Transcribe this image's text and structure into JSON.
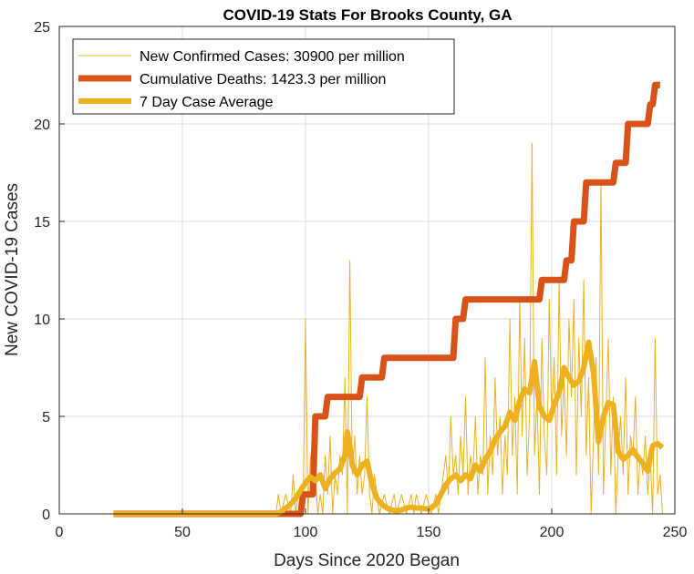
{
  "chart_data": {
    "type": "line",
    "title": "COVID-19 Stats For Brooks County, GA",
    "xlabel": "Days Since 2020 Began",
    "ylabel": "New COVID-19 Cases",
    "xlim": [
      0,
      250
    ],
    "ylim": [
      0,
      25
    ],
    "xticks": [
      "0",
      "50",
      "100",
      "150",
      "200",
      "250"
    ],
    "yticks": [
      "0",
      "5",
      "10",
      "15",
      "20",
      "25"
    ],
    "grid": true,
    "legend_position": "top-left",
    "series": [
      {
        "name": "New Confirmed Cases: 30900 per million",
        "color": "#EDB120",
        "style": "thin",
        "points": [
          [
            22,
            0
          ],
          [
            88,
            0
          ],
          [
            89,
            1
          ],
          [
            90,
            0
          ],
          [
            92,
            1
          ],
          [
            94,
            0
          ],
          [
            95,
            2
          ],
          [
            96,
            0
          ],
          [
            97,
            1
          ],
          [
            98,
            1
          ],
          [
            99,
            0
          ],
          [
            100,
            10
          ],
          [
            101,
            0
          ],
          [
            102,
            3
          ],
          [
            103,
            1
          ],
          [
            104,
            2
          ],
          [
            105,
            0
          ],
          [
            106,
            1
          ],
          [
            107,
            0
          ],
          [
            108,
            3
          ],
          [
            109,
            1
          ],
          [
            110,
            4
          ],
          [
            111,
            0
          ],
          [
            112,
            2
          ],
          [
            113,
            1
          ],
          [
            114,
            3
          ],
          [
            115,
            2
          ],
          [
            116,
            7
          ],
          [
            117,
            0
          ],
          [
            118,
            13
          ],
          [
            119,
            2
          ],
          [
            120,
            4
          ],
          [
            121,
            1
          ],
          [
            122,
            3
          ],
          [
            123,
            1
          ],
          [
            124,
            2
          ],
          [
            125,
            6
          ],
          [
            126,
            1
          ],
          [
            127,
            0
          ],
          [
            128,
            2
          ],
          [
            129,
            1
          ],
          [
            130,
            0
          ],
          [
            132,
            1
          ],
          [
            134,
            0
          ],
          [
            136,
            1
          ],
          [
            137,
            0
          ],
          [
            139,
            1
          ],
          [
            141,
            0
          ],
          [
            143,
            1
          ],
          [
            144,
            0
          ],
          [
            145,
            1
          ],
          [
            147,
            0
          ],
          [
            149,
            1
          ],
          [
            151,
            0
          ],
          [
            153,
            1
          ],
          [
            154,
            0
          ],
          [
            156,
            2
          ],
          [
            157,
            3
          ],
          [
            158,
            1
          ],
          [
            159,
            5
          ],
          [
            160,
            2
          ],
          [
            161,
            3
          ],
          [
            162,
            1
          ],
          [
            163,
            4
          ],
          [
            164,
            2
          ],
          [
            165,
            6
          ],
          [
            166,
            1
          ],
          [
            167,
            3
          ],
          [
            168,
            2
          ],
          [
            169,
            5
          ],
          [
            170,
            1
          ],
          [
            171,
            3
          ],
          [
            172,
            2
          ],
          [
            173,
            8
          ],
          [
            174,
            1
          ],
          [
            175,
            4
          ],
          [
            176,
            2
          ],
          [
            177,
            7
          ],
          [
            178,
            3
          ],
          [
            179,
            5
          ],
          [
            180,
            1
          ],
          [
            181,
            4
          ],
          [
            182,
            2
          ],
          [
            183,
            10
          ],
          [
            184,
            3
          ],
          [
            185,
            6
          ],
          [
            186,
            1
          ],
          [
            187,
            11
          ],
          [
            188,
            4
          ],
          [
            189,
            9
          ],
          [
            190,
            2
          ],
          [
            191,
            5
          ],
          [
            192,
            19
          ],
          [
            193,
            3
          ],
          [
            194,
            6
          ],
          [
            195,
            1
          ],
          [
            196,
            9
          ],
          [
            197,
            4
          ],
          [
            198,
            2
          ],
          [
            199,
            11
          ],
          [
            200,
            5
          ],
          [
            201,
            8
          ],
          [
            202,
            2
          ],
          [
            203,
            12
          ],
          [
            204,
            4
          ],
          [
            205,
            7
          ],
          [
            206,
            3
          ],
          [
            207,
            10
          ],
          [
            208,
            6
          ],
          [
            209,
            11
          ],
          [
            210,
            2
          ],
          [
            211,
            9
          ],
          [
            212,
            5
          ],
          [
            213,
            12
          ],
          [
            214,
            3
          ],
          [
            215,
            7
          ],
          [
            216,
            0
          ],
          [
            217,
            4
          ],
          [
            218,
            8
          ],
          [
            219,
            2
          ],
          [
            220,
            17
          ],
          [
            221,
            1
          ],
          [
            222,
            5
          ],
          [
            223,
            9
          ],
          [
            224,
            2
          ],
          [
            225,
            6
          ],
          [
            226,
            0
          ],
          [
            227,
            3
          ],
          [
            228,
            5
          ],
          [
            229,
            2
          ],
          [
            230,
            7
          ],
          [
            231,
            1
          ],
          [
            232,
            4
          ],
          [
            233,
            3
          ],
          [
            234,
            6
          ],
          [
            235,
            1
          ],
          [
            236,
            3
          ],
          [
            237,
            2
          ],
          [
            238,
            4
          ],
          [
            239,
            1
          ],
          [
            240,
            3
          ],
          [
            241,
            0
          ],
          [
            242,
            9
          ],
          [
            243,
            1
          ],
          [
            244,
            2
          ],
          [
            245,
            0
          ]
        ]
      },
      {
        "name": "Cumulative Deaths: 1423.3 per million",
        "color": "#D95319",
        "style": "thick",
        "points": [
          [
            22,
            0
          ],
          [
            98,
            0
          ],
          [
            99,
            1
          ],
          [
            103,
            1
          ],
          [
            104,
            5
          ],
          [
            108,
            5
          ],
          [
            109,
            6
          ],
          [
            122,
            6
          ],
          [
            123,
            7
          ],
          [
            131,
            7
          ],
          [
            132,
            8
          ],
          [
            160,
            8
          ],
          [
            161,
            10
          ],
          [
            164,
            10
          ],
          [
            165,
            11
          ],
          [
            195,
            11
          ],
          [
            196,
            12
          ],
          [
            205,
            12
          ],
          [
            206,
            13
          ],
          [
            208,
            13
          ],
          [
            209,
            15
          ],
          [
            213,
            15
          ],
          [
            214,
            17
          ],
          [
            225,
            17
          ],
          [
            226,
            18
          ],
          [
            230,
            18
          ],
          [
            231,
            20
          ],
          [
            239,
            20
          ],
          [
            240,
            21
          ],
          [
            241,
            21
          ],
          [
            242,
            22
          ],
          [
            244,
            22
          ]
        ]
      },
      {
        "name": "7 Day Case Average",
        "color": "#EDB120",
        "style": "medium",
        "points": [
          [
            22,
            0
          ],
          [
            88,
            0
          ],
          [
            90,
            0.1
          ],
          [
            92,
            0.3
          ],
          [
            94,
            0.5
          ],
          [
            96,
            0.8
          ],
          [
            98,
            1.2
          ],
          [
            100,
            1.6
          ],
          [
            102,
            1.9
          ],
          [
            104,
            1.7
          ],
          [
            106,
            2.0
          ],
          [
            108,
            1.3
          ],
          [
            110,
            1.8
          ],
          [
            112,
            2.1
          ],
          [
            114,
            2.3
          ],
          [
            116,
            3.0
          ],
          [
            117,
            4.2
          ],
          [
            118,
            3.5
          ],
          [
            119,
            2.5
          ],
          [
            121,
            2.0
          ],
          [
            123,
            2.5
          ],
          [
            125,
            2.7
          ],
          [
            127,
            1.5
          ],
          [
            129,
            0.8
          ],
          [
            131,
            0.5
          ],
          [
            133,
            0.3
          ],
          [
            135,
            0.2
          ],
          [
            137,
            0.15
          ],
          [
            139,
            0.2
          ],
          [
            141,
            0.3
          ],
          [
            143,
            0.35
          ],
          [
            145,
            0.3
          ],
          [
            147,
            0.3
          ],
          [
            149,
            0.25
          ],
          [
            151,
            0.3
          ],
          [
            153,
            0.5
          ],
          [
            155,
            1.0
          ],
          [
            157,
            1.5
          ],
          [
            159,
            1.8
          ],
          [
            161,
            2.0
          ],
          [
            163,
            1.7
          ],
          [
            165,
            2.0
          ],
          [
            167,
            1.8
          ],
          [
            169,
            2.5
          ],
          [
            171,
            2.2
          ],
          [
            173,
            2.8
          ],
          [
            175,
            3.2
          ],
          [
            177,
            3.8
          ],
          [
            179,
            4.2
          ],
          [
            181,
            4.5
          ],
          [
            183,
            5.2
          ],
          [
            185,
            4.8
          ],
          [
            187,
            5.8
          ],
          [
            189,
            6.4
          ],
          [
            191,
            6.2
          ],
          [
            193,
            7.8
          ],
          [
            195,
            5.5
          ],
          [
            197,
            5.0
          ],
          [
            199,
            4.8
          ],
          [
            201,
            5.6
          ],
          [
            203,
            6.2
          ],
          [
            205,
            7.5
          ],
          [
            207,
            7.0
          ],
          [
            209,
            6.6
          ],
          [
            211,
            6.8
          ],
          [
            213,
            7.5
          ],
          [
            215,
            8.8
          ],
          [
            217,
            7.2
          ],
          [
            219,
            3.7
          ],
          [
            221,
            5.0
          ],
          [
            223,
            5.7
          ],
          [
            225,
            5.6
          ],
          [
            227,
            3.2
          ],
          [
            229,
            2.8
          ],
          [
            231,
            3.0
          ],
          [
            233,
            3.3
          ],
          [
            235,
            2.9
          ],
          [
            237,
            2.6
          ],
          [
            239,
            2.2
          ],
          [
            241,
            3.5
          ],
          [
            243,
            3.6
          ],
          [
            245,
            3.4
          ]
        ]
      }
    ]
  }
}
